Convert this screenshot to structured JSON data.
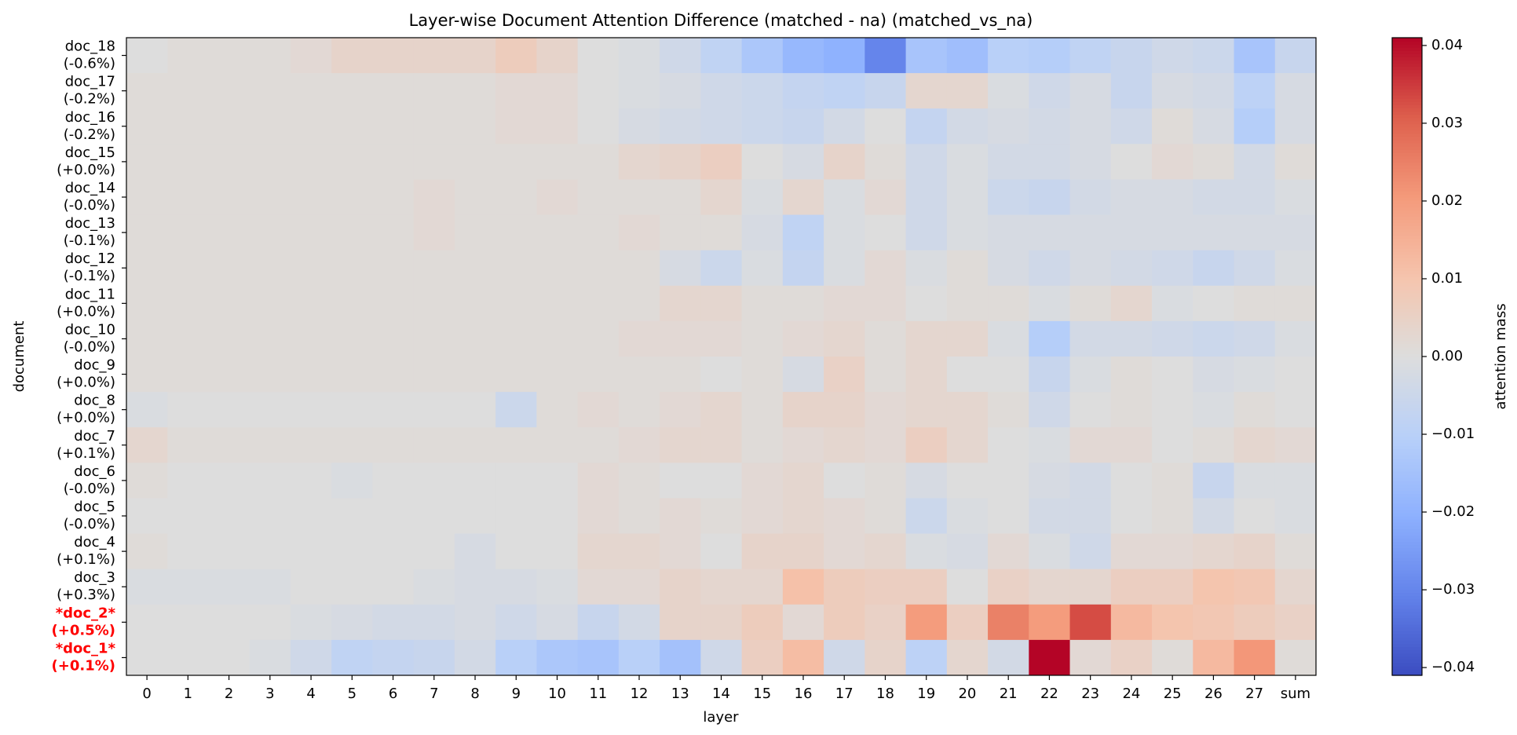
{
  "chart_data": {
    "type": "heatmap",
    "title": "Layer-wise Document Attention Difference (matched - na) (matched_vs_na)",
    "xlabel": "layer",
    "ylabel": "document",
    "colorbar_label": "attention mass",
    "colormap": "coolwarm",
    "highlight_color": "#ff0000",
    "x": [
      "0",
      "1",
      "2",
      "3",
      "4",
      "5",
      "6",
      "7",
      "8",
      "9",
      "10",
      "11",
      "12",
      "13",
      "14",
      "15",
      "16",
      "17",
      "18",
      "19",
      "20",
      "21",
      "22",
      "23",
      "24",
      "25",
      "26",
      "27",
      "sum"
    ],
    "categories": [
      "doc_18",
      "doc_17",
      "doc_16",
      "doc_15",
      "doc_14",
      "doc_13",
      "doc_12",
      "doc_11",
      "doc_10",
      "doc_9",
      "doc_8",
      "doc_7",
      "doc_6",
      "doc_5",
      "doc_4",
      "doc_3",
      "*doc_2*",
      "*doc_1*"
    ],
    "category_sublabels": [
      "(-0.6%)",
      "(-0.2%)",
      "(-0.2%)",
      "(+0.0%)",
      "(-0.0%)",
      "(-0.1%)",
      "(-0.1%)",
      "(+0.0%)",
      "(-0.0%)",
      "(+0.0%)",
      "(+0.0%)",
      "(+0.1%)",
      "(-0.0%)",
      "(-0.0%)",
      "(+0.1%)",
      "(+0.3%)",
      "(+0.5%)",
      "(+0.1%)"
    ],
    "values": [
      [
        0,
        0.001,
        0.001,
        0.001,
        0.002,
        0.004,
        0.004,
        0.004,
        0.004,
        0.007,
        0.004,
        0,
        -0.001,
        -0.004,
        -0.008,
        -0.013,
        -0.018,
        -0.02,
        -0.03,
        -0.014,
        -0.016,
        -0.01,
        -0.011,
        -0.008,
        -0.006,
        -0.004,
        -0.005,
        -0.014,
        -0.006
      ],
      [
        0.001,
        0.001,
        0.001,
        0.001,
        0.001,
        0.001,
        0.001,
        0.001,
        0.001,
        0.002,
        0.002,
        0,
        -0.001,
        -0.002,
        -0.004,
        -0.005,
        -0.007,
        -0.008,
        -0.006,
        0.003,
        0.003,
        -0.001,
        -0.004,
        -0.002,
        -0.006,
        -0.002,
        -0.003,
        -0.009,
        -0.002
      ],
      [
        0.001,
        0.001,
        0.001,
        0.001,
        0.001,
        0.001,
        0.001,
        0.001,
        0.001,
        0.002,
        0.002,
        0,
        -0.002,
        -0.003,
        -0.004,
        -0.005,
        -0.006,
        -0.003,
        0,
        -0.007,
        -0.003,
        -0.002,
        -0.003,
        -0.002,
        -0.004,
        0.001,
        -0.002,
        -0.011,
        -0.002
      ],
      [
        0.001,
        0.001,
        0.001,
        0.001,
        0.001,
        0.001,
        0.001,
        0.001,
        0.001,
        0.001,
        0.001,
        0.001,
        0.003,
        0.004,
        0.006,
        0,
        -0.002,
        0.004,
        0.001,
        -0.004,
        -0.001,
        -0.003,
        -0.003,
        -0.002,
        0,
        0.002,
        0.001,
        -0.003,
        0.001
      ],
      [
        0.001,
        0.001,
        0.001,
        0.001,
        0.001,
        0.001,
        0.001,
        0.002,
        0.001,
        0.001,
        0.002,
        0.001,
        0.001,
        0.001,
        0.003,
        -0.001,
        0.003,
        -0.001,
        0.002,
        -0.004,
        -0.001,
        -0.005,
        -0.006,
        -0.003,
        -0.002,
        -0.002,
        -0.003,
        -0.003,
        -0.001
      ],
      [
        0.001,
        0.001,
        0.001,
        0.001,
        0.001,
        0.001,
        0.001,
        0.002,
        0.001,
        0.001,
        0.001,
        0.001,
        0.002,
        0.001,
        0.001,
        -0.002,
        -0.008,
        -0.001,
        0,
        -0.004,
        -0.001,
        -0.002,
        -0.002,
        -0.002,
        -0.002,
        -0.002,
        -0.002,
        -0.002,
        -0.002
      ],
      [
        0.001,
        0.001,
        0.001,
        0.001,
        0.001,
        0.001,
        0.001,
        0.001,
        0.001,
        0.001,
        0.001,
        0.001,
        0.001,
        -0.002,
        -0.005,
        -0.001,
        -0.007,
        -0.001,
        0.002,
        -0.001,
        0.001,
        -0.002,
        -0.004,
        -0.002,
        -0.003,
        -0.004,
        -0.006,
        -0.004,
        -0.001
      ],
      [
        0.001,
        0.001,
        0.001,
        0.001,
        0.001,
        0.001,
        0.001,
        0.001,
        0.001,
        0.001,
        0.001,
        0.001,
        0.001,
        0.003,
        0.003,
        0.001,
        0.001,
        0.002,
        0.002,
        0,
        0.001,
        0.001,
        -0.001,
        0.001,
        0.003,
        -0.001,
        0,
        0.001,
        0.001
      ],
      [
        0.001,
        0.001,
        0.001,
        0.001,
        0.001,
        0.001,
        0.001,
        0.001,
        0.001,
        0.001,
        0.001,
        0.001,
        0.002,
        0.002,
        0.002,
        0.001,
        0.002,
        0.003,
        0.001,
        0.003,
        0.003,
        -0.001,
        -0.011,
        -0.003,
        -0.003,
        -0.004,
        -0.005,
        -0.004,
        -0.001
      ],
      [
        0.001,
        0.001,
        0.001,
        0.001,
        0.001,
        0.001,
        0.001,
        0.001,
        0.001,
        0.001,
        0.001,
        0.001,
        0.001,
        0.001,
        0,
        0.001,
        -0.002,
        0.005,
        0.001,
        0.003,
        0,
        0,
        -0.006,
        -0.001,
        0.001,
        0,
        -0.002,
        -0.001,
        0
      ],
      [
        -0.001,
        0,
        0,
        0,
        0,
        0,
        0,
        0,
        0,
        -0.005,
        0.001,
        0.002,
        0.001,
        0.002,
        0.003,
        0.001,
        0.004,
        0.004,
        0.002,
        0.003,
        0.003,
        0.001,
        -0.004,
        0,
        0.001,
        0,
        -0.001,
        0.001,
        0
      ],
      [
        0.003,
        0.001,
        0.001,
        0.001,
        0.001,
        0.001,
        0.001,
        0.001,
        0.001,
        0.001,
        0.001,
        0.001,
        0.002,
        0.003,
        0.003,
        0.001,
        0.002,
        0.003,
        0.002,
        0.006,
        0.003,
        0,
        -0.001,
        0.002,
        0.002,
        0,
        0.001,
        0.003,
        0.002
      ],
      [
        0.001,
        0,
        0,
        0,
        0,
        -0.001,
        0,
        0,
        0,
        0,
        0,
        0.002,
        0.001,
        0,
        0,
        0.002,
        0.003,
        0,
        0.001,
        -0.002,
        0,
        0,
        -0.002,
        -0.003,
        0,
        0.001,
        -0.006,
        -0.001,
        -0.001
      ],
      [
        0,
        0,
        0,
        0,
        0,
        0,
        0,
        0,
        0,
        0,
        0,
        0.002,
        0.001,
        0.002,
        0.001,
        0.002,
        0.003,
        0.002,
        0.001,
        -0.005,
        -0.001,
        0,
        -0.003,
        -0.003,
        0,
        0.001,
        -0.003,
        0,
        -0.001
      ],
      [
        0.001,
        0,
        0,
        0,
        0,
        0,
        0,
        0,
        -0.002,
        0,
        0,
        0.003,
        0.003,
        0.002,
        0,
        0.004,
        0.004,
        0.002,
        0.003,
        -0.001,
        -0.002,
        0.002,
        -0.001,
        -0.004,
        0.002,
        0.002,
        0.003,
        0.004,
        0.001
      ],
      [
        -0.001,
        -0.001,
        -0.001,
        -0.001,
        0,
        0,
        0,
        -0.001,
        -0.002,
        -0.002,
        -0.001,
        0.002,
        0.002,
        0.004,
        0.003,
        0.003,
        0.011,
        0.007,
        0.006,
        0.006,
        0,
        0.005,
        0.003,
        0.003,
        0.006,
        0.006,
        0.01,
        0.009,
        0.003
      ],
      [
        0,
        0,
        0,
        0,
        -0.001,
        -0.002,
        -0.003,
        -0.003,
        -0.002,
        -0.004,
        -0.002,
        -0.006,
        -0.003,
        0.004,
        0.004,
        0.007,
        0.002,
        0.007,
        0.005,
        0.02,
        0.006,
        0.025,
        0.02,
        0.033,
        0.013,
        0.01,
        0.009,
        0.007,
        0.005
      ],
      [
        0,
        0,
        0,
        -0.001,
        -0.004,
        -0.008,
        -0.007,
        -0.006,
        -0.003,
        -0.01,
        -0.013,
        -0.014,
        -0.01,
        -0.015,
        -0.004,
        0.006,
        0.012,
        -0.004,
        0.004,
        -0.009,
        0.003,
        -0.003,
        0.041,
        0.002,
        0.005,
        0.001,
        0.013,
        0.021,
        0.001
      ]
    ],
    "clim": [
      -0.041,
      0.041
    ],
    "cticks": [
      {
        "value": -0.04,
        "label": "−0.04"
      },
      {
        "value": -0.03,
        "label": "−0.03"
      },
      {
        "value": -0.02,
        "label": "−0.02"
      },
      {
        "value": -0.01,
        "label": "−0.01"
      },
      {
        "value": 0,
        "label": "0.00"
      },
      {
        "value": 0.01,
        "label": "0.01"
      },
      {
        "value": 0.02,
        "label": "0.02"
      },
      {
        "value": 0.03,
        "label": "0.03"
      },
      {
        "value": 0.04,
        "label": "0.04"
      }
    ]
  }
}
